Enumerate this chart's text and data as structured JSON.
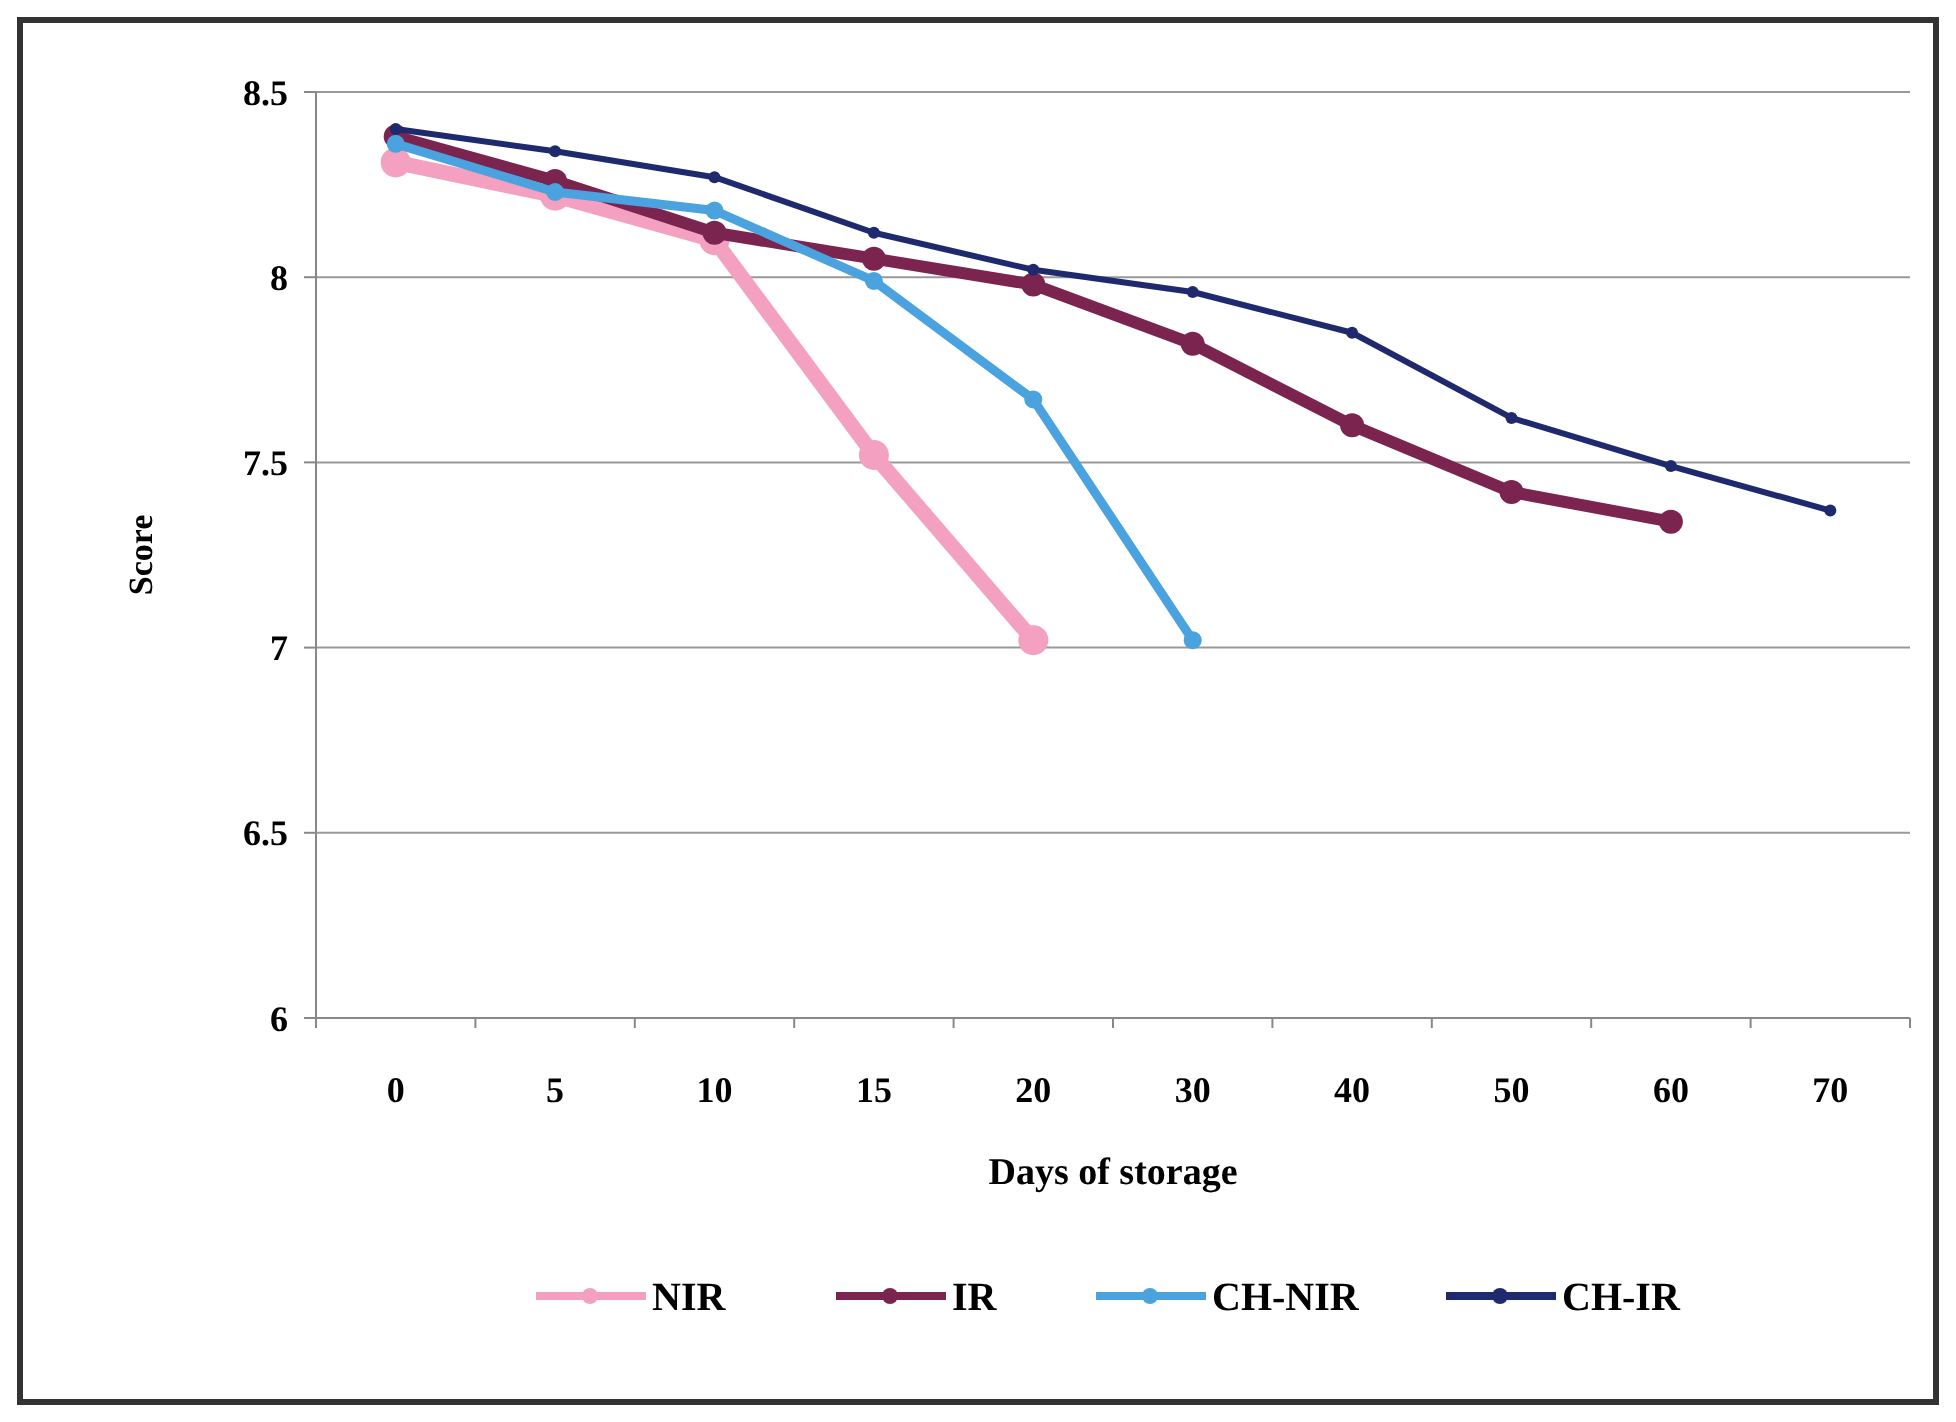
{
  "chart_data": {
    "type": "line",
    "xlabel": "Days of storage",
    "ylabel": "Score",
    "categories": [
      "0",
      "5",
      "10",
      "15",
      "20",
      "30",
      "40",
      "50",
      "60",
      "70"
    ],
    "ylim": [
      6,
      8.5
    ],
    "yticks": [
      6,
      6.5,
      7,
      7.5,
      8,
      8.5
    ],
    "grid": "y",
    "legend": "bottom",
    "marker": "circle",
    "series": [
      {
        "name": "NIR",
        "color": "#f4a0c0",
        "values": [
          8.31,
          8.22,
          8.1,
          7.52,
          7.02,
          null,
          null,
          null,
          null,
          null
        ]
      },
      {
        "name": "IR",
        "color": "#7b2450",
        "values": [
          8.38,
          8.26,
          8.12,
          8.05,
          7.98,
          7.82,
          7.6,
          7.42,
          7.34,
          null
        ]
      },
      {
        "name": "CH-NIR",
        "color": "#4aa3df",
        "values": [
          8.36,
          8.23,
          8.18,
          7.99,
          7.67,
          7.02,
          null,
          null,
          null,
          null
        ]
      },
      {
        "name": "CH-IR",
        "color": "#1f2a6e",
        "values": [
          8.4,
          8.34,
          8.27,
          8.12,
          8.02,
          7.96,
          7.85,
          7.62,
          7.49,
          7.37
        ]
      }
    ]
  }
}
